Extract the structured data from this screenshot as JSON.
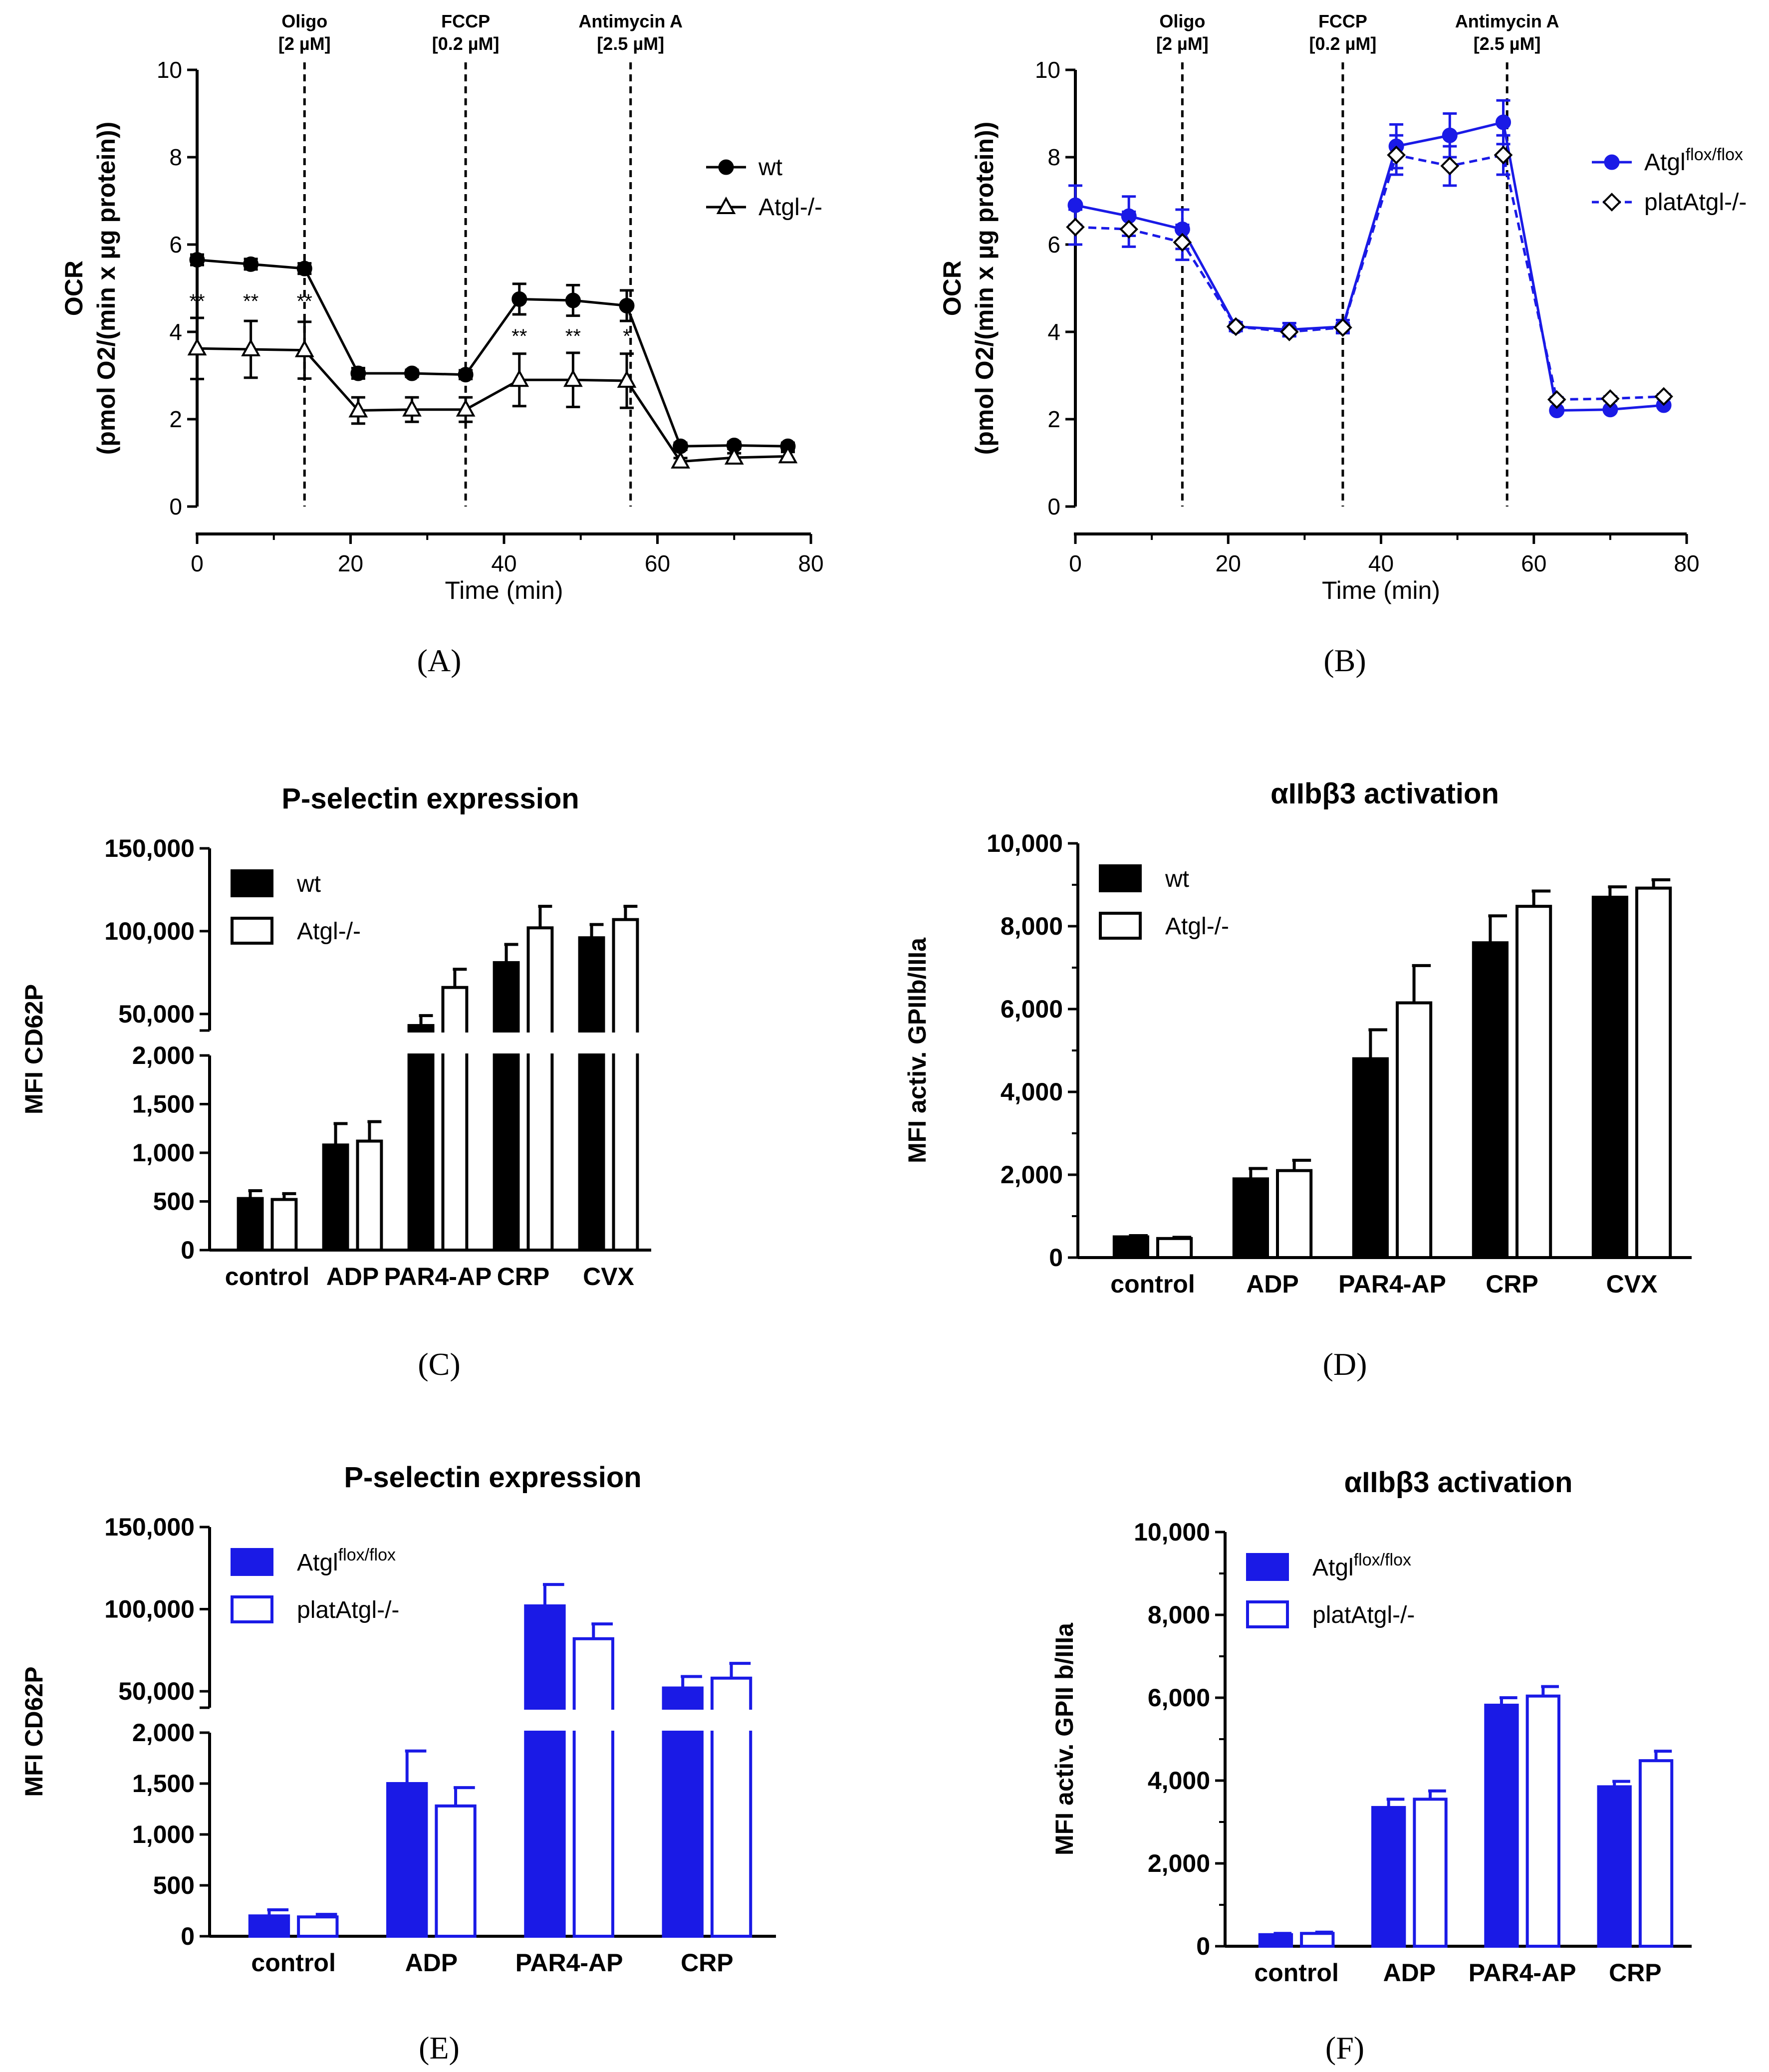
{
  "chart_data": [
    {
      "id": "A",
      "type": "line",
      "panel_label": "(A)",
      "xlabel": "Time (min)",
      "ylabel_line1": "OCR",
      "ylabel_line2": "(pmol O2/(min x µg protein))",
      "xlim": [
        0,
        80
      ],
      "ylim": [
        0,
        10
      ],
      "xticks": [
        "0",
        "20",
        "40",
        "60",
        "80"
      ],
      "yticks": [
        "0",
        "2",
        "4",
        "6",
        "8",
        "10"
      ],
      "vlines": [
        {
          "x": 14,
          "label1": "Oligo",
          "label2": "[2 µM]"
        },
        {
          "x": 35,
          "label1": "FCCP",
          "label2": "[0.2 µM]"
        },
        {
          "x": 56.5,
          "label1": "Antimycin A",
          "label2": "[2.5 µM]"
        }
      ],
      "legend": [
        "wt",
        "Atgl-/-"
      ],
      "x": [
        0,
        7,
        14,
        21,
        28,
        35,
        42,
        49,
        56,
        63,
        70,
        77
      ],
      "series": [
        {
          "name": "wt",
          "color": "#000000",
          "marker": "circle",
          "dashed": false,
          "values": [
            5.65,
            5.55,
            5.45,
            3.05,
            3.05,
            3.02,
            4.75,
            4.72,
            4.6,
            1.38,
            1.4,
            1.38
          ],
          "errors": [
            0.12,
            0.12,
            0.12,
            0.12,
            0.08,
            0.1,
            0.35,
            0.35,
            0.35,
            0.08,
            0.08,
            0.08
          ]
        },
        {
          "name": "Atgl-/-",
          "color": "#000000",
          "marker": "triangle",
          "dashed": false,
          "values": [
            3.62,
            3.6,
            3.58,
            2.2,
            2.22,
            2.22,
            2.9,
            2.9,
            2.88,
            1.03,
            1.12,
            1.15
          ],
          "errors": [
            0.7,
            0.65,
            0.65,
            0.3,
            0.28,
            0.28,
            0.6,
            0.62,
            0.62,
            0.08,
            0.1,
            0.1
          ]
        }
      ],
      "annotations": [
        {
          "x": 0,
          "y": 4.55,
          "text": "**"
        },
        {
          "x": 7,
          "y": 4.55,
          "text": "**"
        },
        {
          "x": 14,
          "y": 4.55,
          "text": "**"
        },
        {
          "x": 42,
          "y": 3.75,
          "text": "**"
        },
        {
          "x": 49,
          "y": 3.75,
          "text": "**"
        },
        {
          "x": 56,
          "y": 3.75,
          "text": "*"
        }
      ]
    },
    {
      "id": "B",
      "type": "line",
      "panel_label": "(B)",
      "xlabel": "Time (min)",
      "ylabel_line1": "OCR",
      "ylabel_line2": "(pmol O2/(min x µg protein))",
      "xlim": [
        0,
        80
      ],
      "ylim": [
        0,
        10
      ],
      "xticks": [
        "0",
        "20",
        "40",
        "60",
        "80"
      ],
      "yticks": [
        "0",
        "2",
        "4",
        "6",
        "8",
        "10"
      ],
      "vlines": [
        {
          "x": 14,
          "label1": "Oligo",
          "label2": "[2 µM]"
        },
        {
          "x": 35,
          "label1": "FCCP",
          "label2": "[0.2 µM]"
        },
        {
          "x": 56.5,
          "label1": "Antimycin A",
          "label2": "[2.5 µM]"
        }
      ],
      "legend": [
        "Atgl",
        "flox/flox",
        "platAtgl-/-"
      ],
      "x": [
        0,
        7,
        14,
        21,
        28,
        35,
        42,
        49,
        56,
        63,
        70,
        77
      ],
      "series": [
        {
          "name": "Atgl flox/flox",
          "color": "#1a1ae6",
          "marker": "circle",
          "dashed": false,
          "values": [
            6.9,
            6.65,
            6.35,
            4.12,
            4.05,
            4.12,
            8.25,
            8.5,
            8.8,
            2.2,
            2.22,
            2.32
          ],
          "errors": [
            0.45,
            0.45,
            0.45,
            0.1,
            0.15,
            0.15,
            0.5,
            0.5,
            0.5,
            0.05,
            0.05,
            0.05
          ]
        },
        {
          "name": "platAtgl-/-",
          "color": "#1a1ae6",
          "marker": "diamond",
          "dashed": true,
          "values": [
            6.4,
            6.35,
            6.05,
            4.12,
            4.0,
            4.1,
            8.05,
            7.8,
            8.05,
            2.45,
            2.47,
            2.52
          ],
          "errors": [
            0.4,
            0.4,
            0.4,
            0.1,
            0.1,
            0.1,
            0.45,
            0.45,
            0.45,
            0.05,
            0.05,
            0.05
          ]
        }
      ]
    },
    {
      "id": "C",
      "type": "bar",
      "panel_label": "(C)",
      "title": "P-selectin expression",
      "ylabel": "MFI CD62P",
      "categories": [
        "control",
        "ADP",
        "PAR4-AP",
        "CRP",
        "CVX"
      ],
      "broken_axis": true,
      "lower_ylim": [
        0,
        2000
      ],
      "upper_ylim": [
        40000,
        150000
      ],
      "lower_yticks": [
        "0",
        "500",
        "1,000",
        "1,500",
        "2,000"
      ],
      "upper_yticks": [
        "50,000",
        "100,000",
        "150,000"
      ],
      "legend": [
        "wt",
        "Atgl-/-"
      ],
      "series": [
        {
          "name": "wt",
          "style": "filled",
          "color": "#000000",
          "values": [
            530,
            1080,
            43000,
            81000,
            96000
          ],
          "errors": [
            80,
            220,
            6000,
            11000,
            8000
          ]
        },
        {
          "name": "Atgl-/-",
          "style": "open",
          "color": "#000000",
          "values": [
            520,
            1120,
            66000,
            102000,
            107000
          ],
          "errors": [
            60,
            200,
            11000,
            13000,
            8000
          ]
        }
      ]
    },
    {
      "id": "D",
      "type": "bar",
      "panel_label": "(D)",
      "title": "αIIbβ3 activation",
      "ylabel": "MFI activ. GPIIb/IIIa",
      "categories": [
        "control",
        "ADP",
        "PAR4-AP",
        "CRP",
        "CVX"
      ],
      "broken_axis": false,
      "ylim": [
        0,
        10000
      ],
      "yticks": [
        "0",
        "2,000",
        "4,000",
        "6,000",
        "8,000",
        "10,000"
      ],
      "legend": [
        "wt",
        "Atgl-/-"
      ],
      "series": [
        {
          "name": "wt",
          "style": "filled",
          "color": "#000000",
          "values": [
            500,
            1900,
            4800,
            7600,
            8700
          ],
          "errors": [
            30,
            250,
            700,
            650,
            250
          ]
        },
        {
          "name": "Atgl-/-",
          "style": "open",
          "color": "#000000",
          "values": [
            460,
            2100,
            6150,
            8480,
            8920
          ],
          "errors": [
            30,
            250,
            900,
            370,
            200
          ]
        }
      ]
    },
    {
      "id": "E",
      "type": "bar",
      "panel_label": "(E)",
      "title": "P-selectin expression",
      "ylabel": "MFI CD62P",
      "categories": [
        "control",
        "ADP",
        "PAR4-AP",
        "CRP"
      ],
      "broken_axis": true,
      "lower_ylim": [
        0,
        2000
      ],
      "upper_ylim": [
        40000,
        150000
      ],
      "lower_yticks": [
        "0",
        "500",
        "1,000",
        "1,500",
        "2,000"
      ],
      "upper_yticks": [
        "50,000",
        "100,000",
        "150,000"
      ],
      "legend": [
        "Atgl",
        "flox/flox",
        "platAtgl-/-"
      ],
      "series": [
        {
          "name": "Atgl flox/flox",
          "style": "filled",
          "color": "#1a1ae6",
          "values": [
            200,
            1500,
            102000,
            52000
          ],
          "errors": [
            60,
            320,
            13000,
            7000
          ]
        },
        {
          "name": "platAtgl-/-",
          "style": "open",
          "color": "#1a1ae6",
          "values": [
            190,
            1280,
            82000,
            58000
          ],
          "errors": [
            25,
            180,
            9000,
            9000
          ]
        }
      ]
    },
    {
      "id": "F",
      "type": "bar",
      "panel_label": "(F)",
      "title": "αIIbβ3 activation",
      "ylabel": "MFI activ. GPII b/IIIa",
      "categories": [
        "control",
        "ADP",
        "PAR4-AP",
        "CRP"
      ],
      "broken_axis": false,
      "ylim": [
        0,
        10000
      ],
      "yticks": [
        "0",
        "2,000",
        "4,000",
        "6,000",
        "8,000",
        "10,000"
      ],
      "legend": [
        "Atgl",
        "flox/flox",
        "platAtgl-/-"
      ],
      "series": [
        {
          "name": "Atgl flox/flox",
          "style": "filled",
          "color": "#1a1ae6",
          "values": [
            280,
            3350,
            5820,
            3850
          ],
          "errors": [
            30,
            200,
            180,
            130
          ]
        },
        {
          "name": "platAtgl-/-",
          "style": "open",
          "color": "#1a1ae6",
          "values": [
            310,
            3550,
            6040,
            4480
          ],
          "errors": [
            30,
            200,
            230,
            230
          ]
        }
      ]
    }
  ]
}
